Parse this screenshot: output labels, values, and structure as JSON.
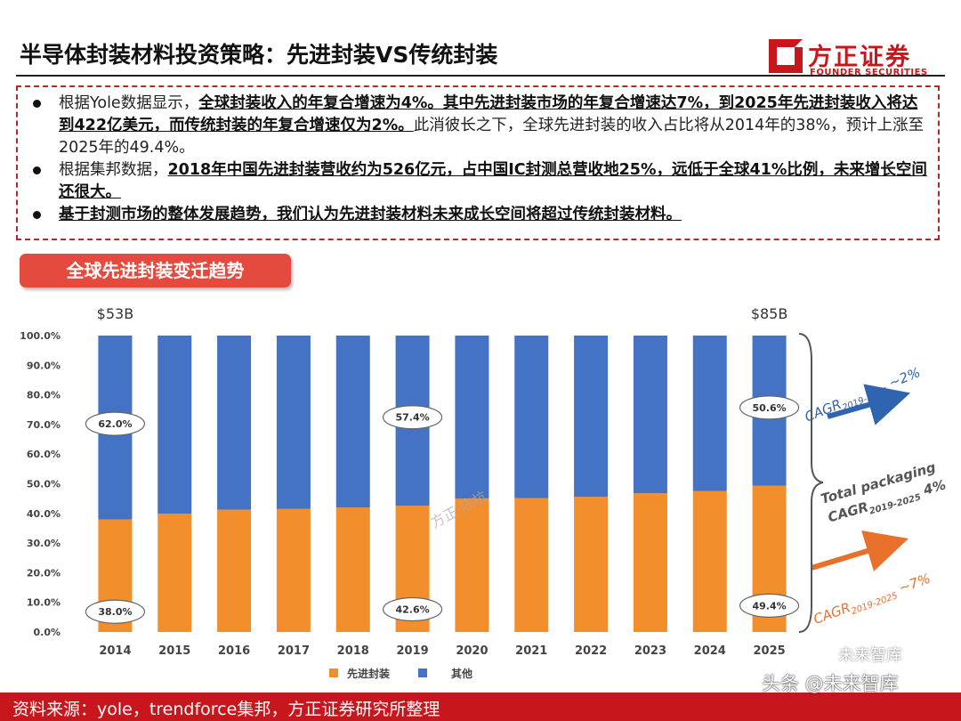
{
  "header": {
    "title": "半导体封装材料投资策略：先进封装VS传统封装",
    "logo_name": "方正证券",
    "logo_sub": "FOUNDER SECURITIES"
  },
  "summary": {
    "b1_plain1": "根据Yole数据显示，",
    "b1_bold": "全球封装收入的年复合增速为4%。其中先进封装市场的年复合增速达7%，到2025年先进封装收入将达到422亿美元，而传统封装的年复合增速仅为2%。",
    "b1_plain2": "此消彼长之下，全球先进封装的收入占比将从2014年的38%，预计上涨至2025年的49.4%。",
    "b2_plain1": "根据集邦数据，",
    "b2_bold": "2018年中国先进封装营收约为526亿元，占中国IC封测总营收地25%，远低于全球41%比例，未来增长空间还很大。",
    "b3_bold": "基于封测市场的整体发展趋势，我们认为先进封装材料未来成长空间将超过传统封装材料。"
  },
  "section_tag": "全球先进封装变迁趋势",
  "chart_data": {
    "type": "bar",
    "stacked": true,
    "categories": [
      "2014",
      "2015",
      "2016",
      "2017",
      "2018",
      "2019",
      "2020",
      "2021",
      "2022",
      "2023",
      "2024",
      "2025"
    ],
    "series": [
      {
        "name": "先进封装",
        "color": "#f28e2b",
        "values": [
          38.0,
          39.9,
          41.3,
          41.5,
          42.0,
          42.6,
          45.0,
          45.2,
          45.6,
          46.8,
          47.6,
          49.4
        ]
      },
      {
        "name": "其他",
        "color": "#4472c4",
        "values": [
          62.0,
          60.1,
          58.7,
          58.5,
          58.0,
          57.4,
          55.0,
          54.8,
          54.4,
          53.2,
          52.4,
          50.6
        ]
      }
    ],
    "ylim": [
      0,
      100
    ],
    "yticks": [
      "0.0%",
      "10.0%",
      "20.0%",
      "30.0%",
      "40.0%",
      "50.0%",
      "60.0%",
      "70.0%",
      "80.0%",
      "90.0%",
      "100.0%"
    ],
    "data_labels": [
      {
        "category": "2014",
        "series": "其他",
        "text": "62.0%"
      },
      {
        "category": "2014",
        "series": "先进封装",
        "text": "38.0%"
      },
      {
        "category": "2019",
        "series": "其他",
        "text": "57.4%"
      },
      {
        "category": "2019",
        "series": "先进封装",
        "text": "42.6%"
      },
      {
        "category": "2025",
        "series": "其他",
        "text": "50.6%"
      },
      {
        "category": "2025",
        "series": "先进封装",
        "text": "49.4%"
      }
    ],
    "totals": [
      {
        "category": "2014",
        "text": "$53B"
      },
      {
        "category": "2025",
        "text": "$85B"
      }
    ],
    "annotations": {
      "cagr_other": "CAGR",
      "cagr_other_sub": "2019-2025",
      "cagr_other_val": " ~2%",
      "total_line1": "Total packaging",
      "total_cagr": "CAGR",
      "total_cagr_sub": "2019-2025",
      "total_cagr_val": " 4%",
      "cagr_adv": "CAGR",
      "cagr_adv_sub": "2019-2025",
      "cagr_adv_val": " ~7%"
    },
    "watermark": "方正·陈杭"
  },
  "footer": {
    "source": "资料来源：yole，trendforce集邦，方正证券研究所整理",
    "watermark_right": "头条 @未来智库",
    "watermark_top": "未来智库"
  },
  "colors": {
    "accent": "#c8161d",
    "advanced": "#f28e2b",
    "other": "#4472c4",
    "arrow_blue": "#2e64b0",
    "arrow_orange": "#e8702a"
  }
}
